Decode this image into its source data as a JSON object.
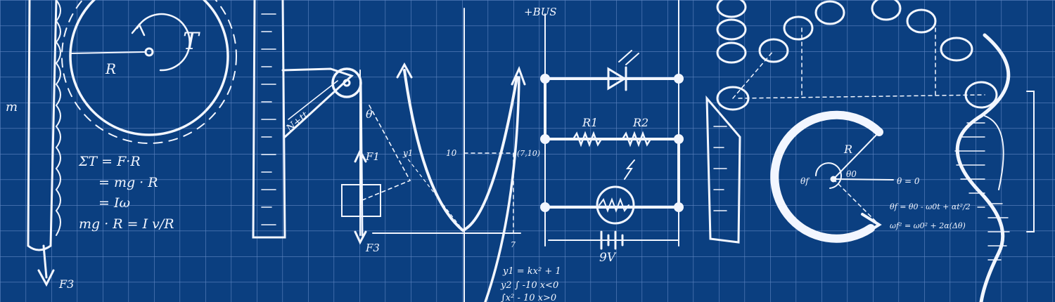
{
  "colors": {
    "background": "#0b3f80",
    "grid": "#5f86c2",
    "chalk": "#f2f6ff"
  },
  "labels": {
    "torque_T": "T",
    "radius_R": "R",
    "mass_m": "m",
    "force_f3_left": "F3",
    "eq1": "ΣT = F·R",
    "eq2": "= mg · R",
    "eq3": "= Iω",
    "eq4": "mg · R = I v/R",
    "bus": "+BUS",
    "angle_theta": "θ",
    "force_f1": "F1",
    "force_f3_mid": "F3",
    "ray_y1": "y1",
    "tick_10": "10",
    "point_7_10": "(7,10)",
    "tick_7": "7",
    "eq_y1": "y1 = kx² + 1",
    "eq_y2": "y2 ∫ -10 x<0",
    "eq_y3": "  ∫x² - 10  x>0",
    "resistor_r1": "R1",
    "resistor_r2": "R2",
    "battery": "9V",
    "circle_R": "R",
    "theta0": "θ0",
    "thetaF": "θf",
    "theta_eq0": "θ = 0",
    "eq_theta": "θf = θ0 - ω0t + αt²/2",
    "eq_omega": "ωf² = ω0² + 2α(Δθ)"
  }
}
